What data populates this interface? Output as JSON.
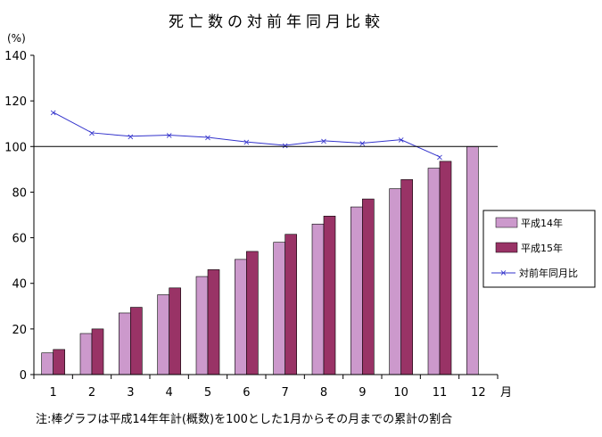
{
  "chart_data": {
    "type": "bar",
    "title": "死亡数の対前年同月比較",
    "ylabel": "(%)",
    "xlabel": "月",
    "categories": [
      "1",
      "2",
      "3",
      "4",
      "5",
      "6",
      "7",
      "8",
      "9",
      "10",
      "11",
      "12"
    ],
    "y_ticks": [
      "0",
      "20",
      "40",
      "60",
      "80",
      "100",
      "120",
      "140"
    ],
    "ylim": [
      0,
      140
    ],
    "reference_line": 100,
    "grid": false,
    "legend_position": "right",
    "series": [
      {
        "name": "平成14年",
        "kind": "bar",
        "color": "#CC99CC",
        "values": [
          9.5,
          18,
          27,
          35,
          43,
          50.5,
          58,
          66,
          73.5,
          81.5,
          90.5,
          100
        ]
      },
      {
        "name": "平成15年",
        "kind": "bar",
        "color": "#993366",
        "values": [
          11,
          20,
          29.5,
          38,
          46,
          54,
          61.5,
          69.5,
          77,
          85.5,
          93.5,
          null
        ]
      },
      {
        "name": "対前年同月比",
        "kind": "line",
        "color": "#3333CC",
        "values": [
          115,
          106,
          104.5,
          105,
          104,
          102,
          100.5,
          102.5,
          101.5,
          103,
          95.5,
          null
        ]
      }
    ],
    "note": "注:棒グラフは平成14年年計(概数)を100とした1月からその月までの累計の割合"
  }
}
